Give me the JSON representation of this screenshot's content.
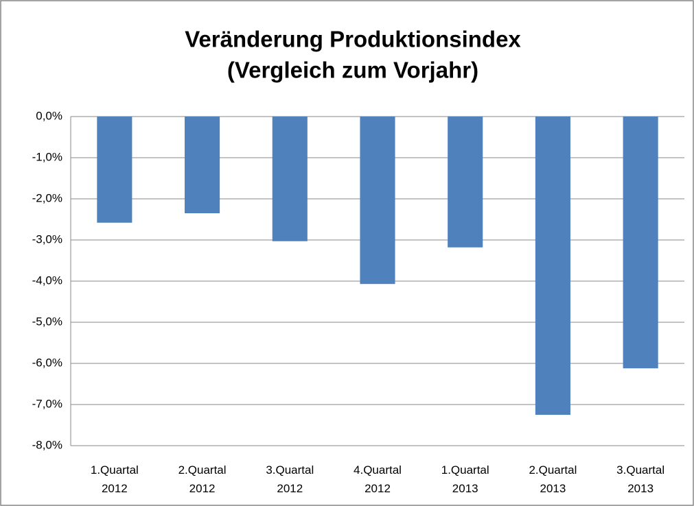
{
  "chart_data": {
    "type": "bar",
    "title": "Veränderung Produktionsindex",
    "subtitle": "(Vergleich zum Vorjahr)",
    "categories": [
      "1.Quartal 2012",
      "2.Quartal 2012",
      "3.Quartal 2012",
      "4.Quartal 2012",
      "1.Quartal 2013",
      "2.Quartal 2013",
      "3.Quartal 2013"
    ],
    "values": [
      -2.58,
      -2.35,
      -3.03,
      -4.07,
      -3.18,
      -7.25,
      -6.12
    ],
    "color": "#4f81bd",
    "ylim": [
      -8,
      0
    ],
    "yticks": [
      {
        "value": 0,
        "label": "0,0%"
      },
      {
        "value": -1,
        "label": "-1,0%"
      },
      {
        "value": -2,
        "label": "-2,0%"
      },
      {
        "value": -3,
        "label": "-3,0%"
      },
      {
        "value": -4,
        "label": "-4,0%"
      },
      {
        "value": -5,
        "label": "-5,0%"
      },
      {
        "value": -6,
        "label": "-6,0%"
      },
      {
        "value": -7,
        "label": "-7,0%"
      },
      {
        "value": -8,
        "label": "-8,0%"
      }
    ],
    "grid": true
  }
}
